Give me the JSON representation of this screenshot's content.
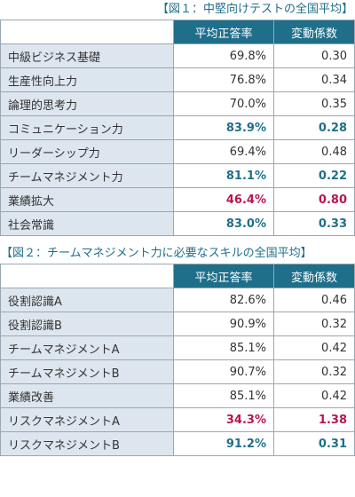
{
  "table1": {
    "caption": "【図１：中堅向けテストの全国平均】",
    "col_avg": "平均正答率",
    "col_cv": "変動係数",
    "rows": [
      {
        "label": "中級ビジネス基礎",
        "avg": "69.8%",
        "cv": "0.30",
        "highlight": ""
      },
      {
        "label": "生産性向上力",
        "avg": "76.8%",
        "cv": "0.34",
        "highlight": ""
      },
      {
        "label": "論理的思考力",
        "avg": "70.0%",
        "cv": "0.35",
        "highlight": ""
      },
      {
        "label": "コミュニケーション力",
        "avg": "83.9%",
        "cv": "0.28",
        "highlight": "teal"
      },
      {
        "label": "リーダーシップ力",
        "avg": "69.4%",
        "cv": "0.48",
        "highlight": ""
      },
      {
        "label": "チームマネジメント力",
        "avg": "81.1%",
        "cv": "0.22",
        "highlight": "teal"
      },
      {
        "label": "業績拡大",
        "avg": "46.4%",
        "cv": "0.80",
        "highlight": "red"
      },
      {
        "label": "社会常識",
        "avg": "83.0%",
        "cv": "0.33",
        "highlight": "teal"
      }
    ]
  },
  "table2": {
    "caption": "【図２：チームマネジメント力に必要なスキルの全国平均】",
    "col_avg": "平均正答率",
    "col_cv": "変動係数",
    "rows": [
      {
        "label": "役割認識A",
        "avg": "82.6%",
        "cv": "0.46",
        "highlight": ""
      },
      {
        "label": "役割認識B",
        "avg": "90.9%",
        "cv": "0.32",
        "highlight": ""
      },
      {
        "label": "チームマネジメントA",
        "avg": "85.1%",
        "cv": "0.42",
        "highlight": ""
      },
      {
        "label": "チームマネジメントB",
        "avg": "90.7%",
        "cv": "0.32",
        "highlight": ""
      },
      {
        "label": "業績改善",
        "avg": "85.1%",
        "cv": "0.42",
        "highlight": ""
      },
      {
        "label": "リスクマネジメントA",
        "avg": "34.3%",
        "cv": "1.38",
        "highlight": "red"
      },
      {
        "label": "リスクマネジメントB",
        "avg": "91.2%",
        "cv": "0.31",
        "highlight": "teal"
      }
    ]
  },
  "colors": {
    "header_bg": "#1f6f8b",
    "label_bg": "#dde6ee",
    "accent_teal": "#1f6f8b",
    "accent_red": "#b8174a"
  }
}
